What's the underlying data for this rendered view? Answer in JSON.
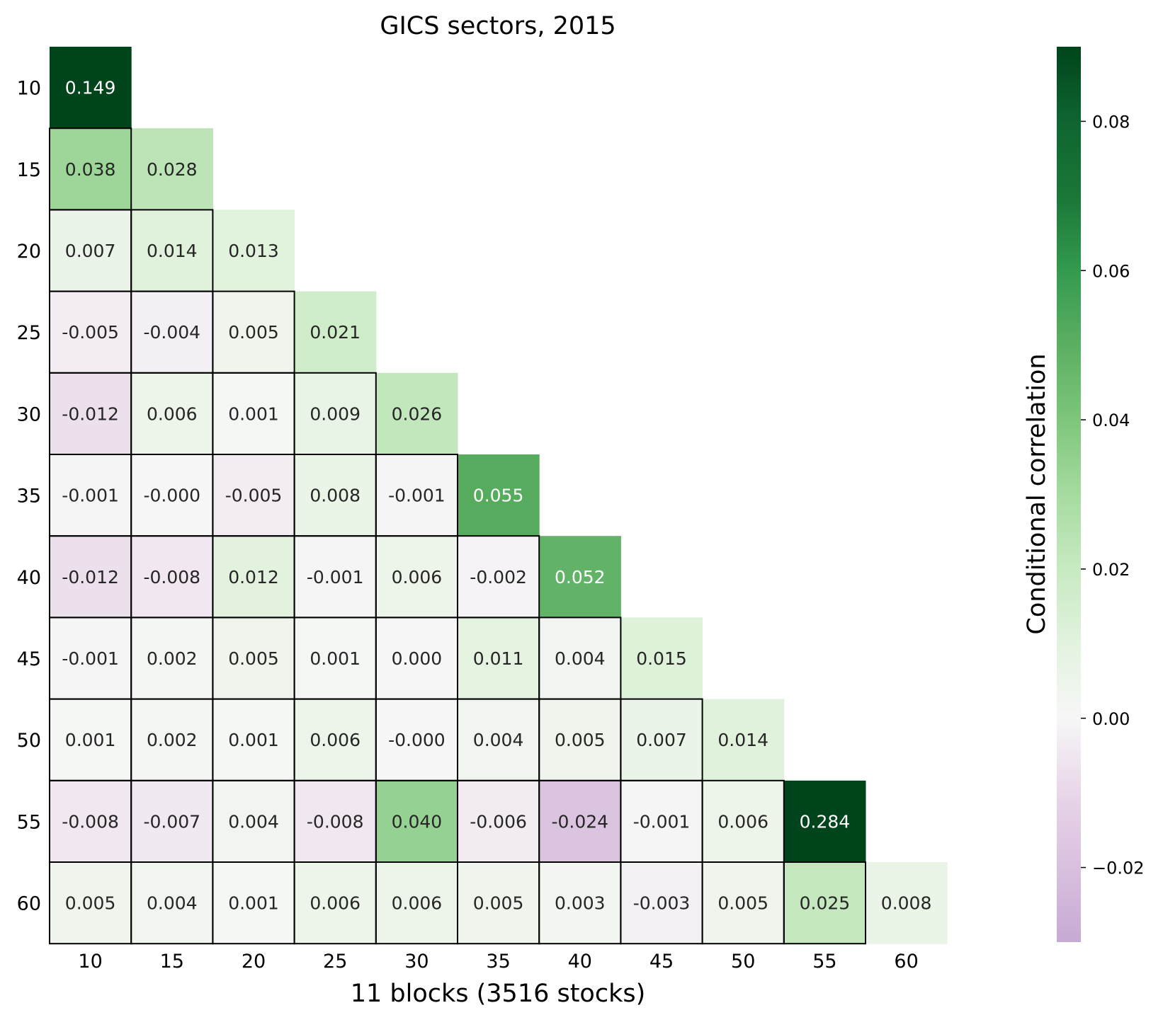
{
  "chart_data": {
    "type": "heatmap",
    "title": "GICS sectors, 2015",
    "xlabel": "11 blocks (3516 stocks)",
    "ylabel": "",
    "colorbar_label": "Conditional correlation",
    "colormap": "PRGn",
    "vmin": -0.03,
    "vmax": 0.09,
    "colorbar_ticks": [
      "-0.02",
      "0.00",
      "0.02",
      "0.04",
      "0.06",
      "0.08"
    ],
    "colorbar_tick_values": [
      -0.02,
      0.0,
      0.02,
      0.04,
      0.06,
      0.08
    ],
    "categories": [
      "10",
      "15",
      "20",
      "25",
      "30",
      "35",
      "40",
      "45",
      "50",
      "55",
      "60"
    ],
    "mask": "upper-triangle",
    "values": [
      [
        0.149
      ],
      [
        0.038,
        0.028
      ],
      [
        0.007,
        0.014,
        0.013
      ],
      [
        -0.005,
        -0.004,
        0.005,
        0.021
      ],
      [
        -0.012,
        0.006,
        0.001,
        0.009,
        0.026
      ],
      [
        -0.001,
        -0.0,
        -0.005,
        0.008,
        -0.001,
        0.055
      ],
      [
        -0.012,
        -0.008,
        0.012,
        -0.001,
        0.006,
        -0.002,
        0.052
      ],
      [
        -0.001,
        0.002,
        0.005,
        0.001,
        0.0,
        0.011,
        0.004,
        0.015
      ],
      [
        0.001,
        0.002,
        0.001,
        0.006,
        -0.0,
        0.004,
        0.005,
        0.007,
        0.014
      ],
      [
        -0.008,
        -0.007,
        0.004,
        -0.008,
        0.04,
        -0.006,
        -0.024,
        -0.001,
        0.006,
        0.284
      ],
      [
        0.005,
        0.004,
        0.001,
        0.006,
        0.006,
        0.005,
        0.003,
        -0.003,
        0.005,
        0.025,
        0.008
      ]
    ],
    "labels": [
      [
        "0.149"
      ],
      [
        "0.038",
        "0.028"
      ],
      [
        "0.007",
        "0.014",
        "0.013"
      ],
      [
        "-0.005",
        "-0.004",
        "0.005",
        "0.021"
      ],
      [
        "-0.012",
        "0.006",
        "0.001",
        "0.009",
        "0.026"
      ],
      [
        "-0.001",
        "-0.000",
        "-0.005",
        "0.008",
        "-0.001",
        "0.055"
      ],
      [
        "-0.012",
        "-0.008",
        "0.012",
        "-0.001",
        "0.006",
        "-0.002",
        "0.052"
      ],
      [
        "-0.001",
        "0.002",
        "0.005",
        "0.001",
        "0.000",
        "0.011",
        "0.004",
        "0.015"
      ],
      [
        "0.001",
        "0.002",
        "0.001",
        "0.006",
        "-0.000",
        "0.004",
        "0.005",
        "0.007",
        "0.014"
      ],
      [
        "-0.008",
        "-0.007",
        "0.004",
        "-0.008",
        "0.040",
        "-0.006",
        "-0.024",
        "-0.001",
        "0.006",
        "0.284"
      ],
      [
        "0.005",
        "0.004",
        "0.001",
        "0.006",
        "0.006",
        "0.005",
        "0.003",
        "-0.003",
        "0.005",
        "0.025",
        "0.008"
      ]
    ],
    "grid": false,
    "block_outlines": true
  }
}
